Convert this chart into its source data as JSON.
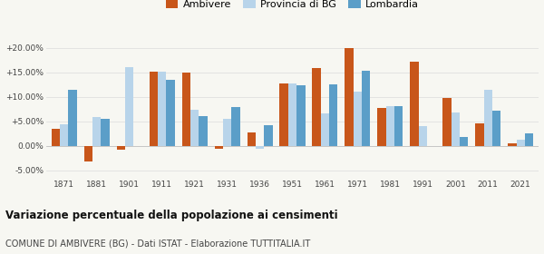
{
  "years": [
    1871,
    1881,
    1901,
    1911,
    1921,
    1931,
    1936,
    1951,
    1961,
    1971,
    1981,
    1991,
    2001,
    2011,
    2021
  ],
  "ambivere": [
    3.5,
    -3.2,
    -0.7,
    15.2,
    15.0,
    -0.5,
    2.8,
    12.7,
    15.8,
    20.0,
    7.7,
    17.2,
    9.8,
    4.6,
    0.6
  ],
  "provincia_bg": [
    4.5,
    5.8,
    16.0,
    15.2,
    7.4,
    5.5,
    -0.5,
    12.8,
    6.7,
    11.0,
    8.2,
    4.0,
    6.8,
    11.5,
    1.3
  ],
  "lombardia": [
    11.5,
    5.6,
    0.0,
    13.5,
    6.0,
    7.9,
    4.3,
    12.4,
    12.5,
    15.3,
    8.1,
    0.0,
    1.9,
    7.2,
    2.5
  ],
  "ambivere_color": "#c8561a",
  "provincia_color": "#b8d4ea",
  "lombardia_color": "#5b9ec8",
  "title": "Variazione percentuale della popolazione ai censimenti",
  "subtitle": "COMUNE DI AMBIVERE (BG) - Dati ISTAT - Elaborazione TUTTITALIA.IT",
  "legend_labels": [
    "Ambivere",
    "Provincia di BG",
    "Lombardia"
  ],
  "ylim": [
    -6.5,
    22.5
  ],
  "yticks": [
    -5.0,
    0.0,
    5.0,
    10.0,
    15.0,
    20.0
  ],
  "ytick_labels": [
    "-5.00%",
    "0.00%",
    "+5.00%",
    "+10.00%",
    "+15.00%",
    "+20.00%"
  ],
  "background_color": "#f7f7f2",
  "grid_color": "#e0e0e0",
  "bar_width": 0.26
}
